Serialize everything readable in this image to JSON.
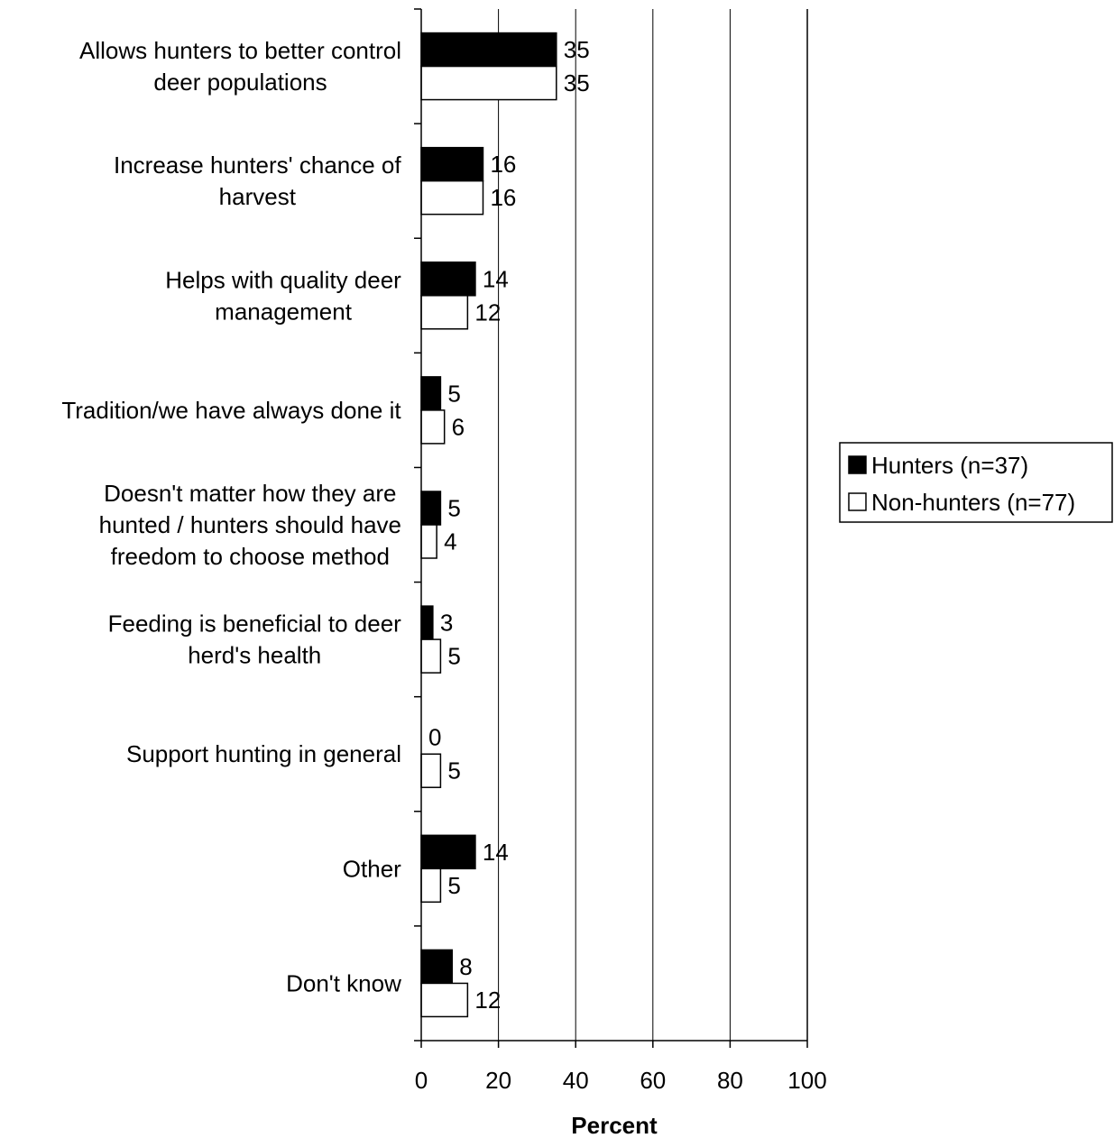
{
  "chart_data": {
    "type": "bar",
    "orientation": "horizontal",
    "categories": [
      [
        "Allows hunters to better control",
        "deer populations"
      ],
      [
        "Increase hunters' chance of",
        "harvest"
      ],
      [
        "Helps with quality deer",
        "management"
      ],
      [
        "Tradition/we have always done it"
      ],
      [
        "Doesn't matter how they are",
        "hunted / hunters should have",
        "freedom to choose method"
      ],
      [
        "Feeding is beneficial to deer",
        "herd's health"
      ],
      [
        "Support hunting in general"
      ],
      [
        "Other"
      ],
      [
        "Don't know"
      ]
    ],
    "series": [
      {
        "name": "Hunters (n=37)",
        "color": "#000000",
        "values": [
          35,
          16,
          14,
          5,
          5,
          3,
          0,
          14,
          8
        ]
      },
      {
        "name": "Non-hunters (n=77)",
        "color": "#ffffff",
        "values": [
          35,
          16,
          12,
          6,
          4,
          5,
          5,
          5,
          12
        ]
      }
    ],
    "xlabel": "Percent",
    "xlim": [
      0,
      100
    ],
    "xticks": [
      0,
      20,
      40,
      60,
      80,
      100
    ],
    "grid": "vertical",
    "legend_position": "right"
  }
}
